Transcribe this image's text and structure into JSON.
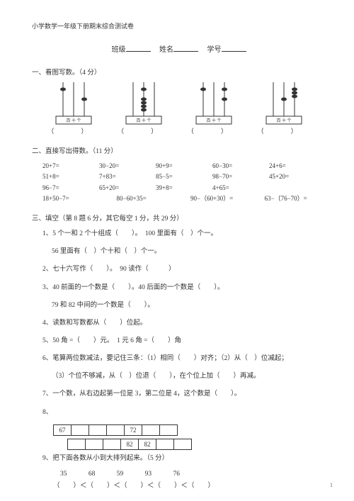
{
  "doc_title": "小学数学一年级下册期末综合测试卷",
  "fields": {
    "class": "班级",
    "name": "姓名",
    "id": "学号"
  },
  "s1": {
    "head": "一、看图写数。（4 分）",
    "paren": "（ ）",
    "abaci": [
      {
        "rods": [
          [
            1,
            0,
            0
          ],
          [
            0,
            0,
            1
          ]
        ]
      },
      {
        "rods": [
          [
            0,
            1,
            0
          ],
          [
            0,
            4,
            0
          ]
        ]
      },
      {
        "rods": [
          [
            1,
            0,
            1
          ],
          [
            0,
            0,
            1
          ]
        ]
      },
      {
        "rods": [
          [
            0,
            0,
            3
          ],
          [
            0,
            1,
            0
          ]
        ]
      }
    ],
    "label": "百 十 个"
  },
  "s2": {
    "head": "二、直接写出得数。（11 分）",
    "row1": [
      "20+7=",
      "30−20=",
      "90+9=",
      "60−30=",
      "24+6="
    ],
    "row2": [
      "51+8=",
      "7+83=",
      "85−5=",
      "98−70=",
      "45+20="
    ],
    "row3": [
      "96−7=",
      "65+20=",
      "39+8=",
      "4+65=",
      ""
    ],
    "row4": [
      "18+50−7=",
      "80−60+35=",
      "90−（60+30）=",
      "63−（76−70）="
    ]
  },
  "s3": {
    "head": "三、填空（第 8 题 6 分，其它每空 1 分，共 29 分）",
    "q1a": "1、5 个一和 2 个十组成（　　）。　100 里面有（　）个一。",
    "q1b": "56 里面有（　）个十和（　）个一。",
    "q2": "2、七十六写作（　　）。　90 读作（　　　）",
    "q3a": "3、40 前面的一个数是（　　）。40 后面的一个数是（　　）。",
    "q3b": "79 和 82 中间的一个数是（　　）。",
    "q4": "4、读数和写数都从（　　）位起。",
    "q5": "5、50 角 =（　　）元。　1 元 6 角 =（　　）角",
    "q6a": "6、笔算两位数减法，要记住三条：（1）相同（　　）对齐；（2）从（　）位减起；",
    "q6b": "（3）个位不够减，从（　）位退（　　），在个位上加（　　）再减。",
    "q7": "7、一个数，从右边起第一位是 3，第二位是 4，这个数是（　　）。",
    "q8": "8、",
    "boxes1": [
      "67",
      "",
      "",
      "",
      "72",
      "",
      ""
    ],
    "boxes2": [
      "",
      "",
      "",
      "82",
      "82",
      "",
      ""
    ],
    "q9": "9、把下面各数从小到大排列起来。（5 分）",
    "nums": "35 68 59 93 76",
    "sort": "（　　）＜（　　）＜（　　）＜（　　）＜（　　）"
  },
  "page": "1"
}
